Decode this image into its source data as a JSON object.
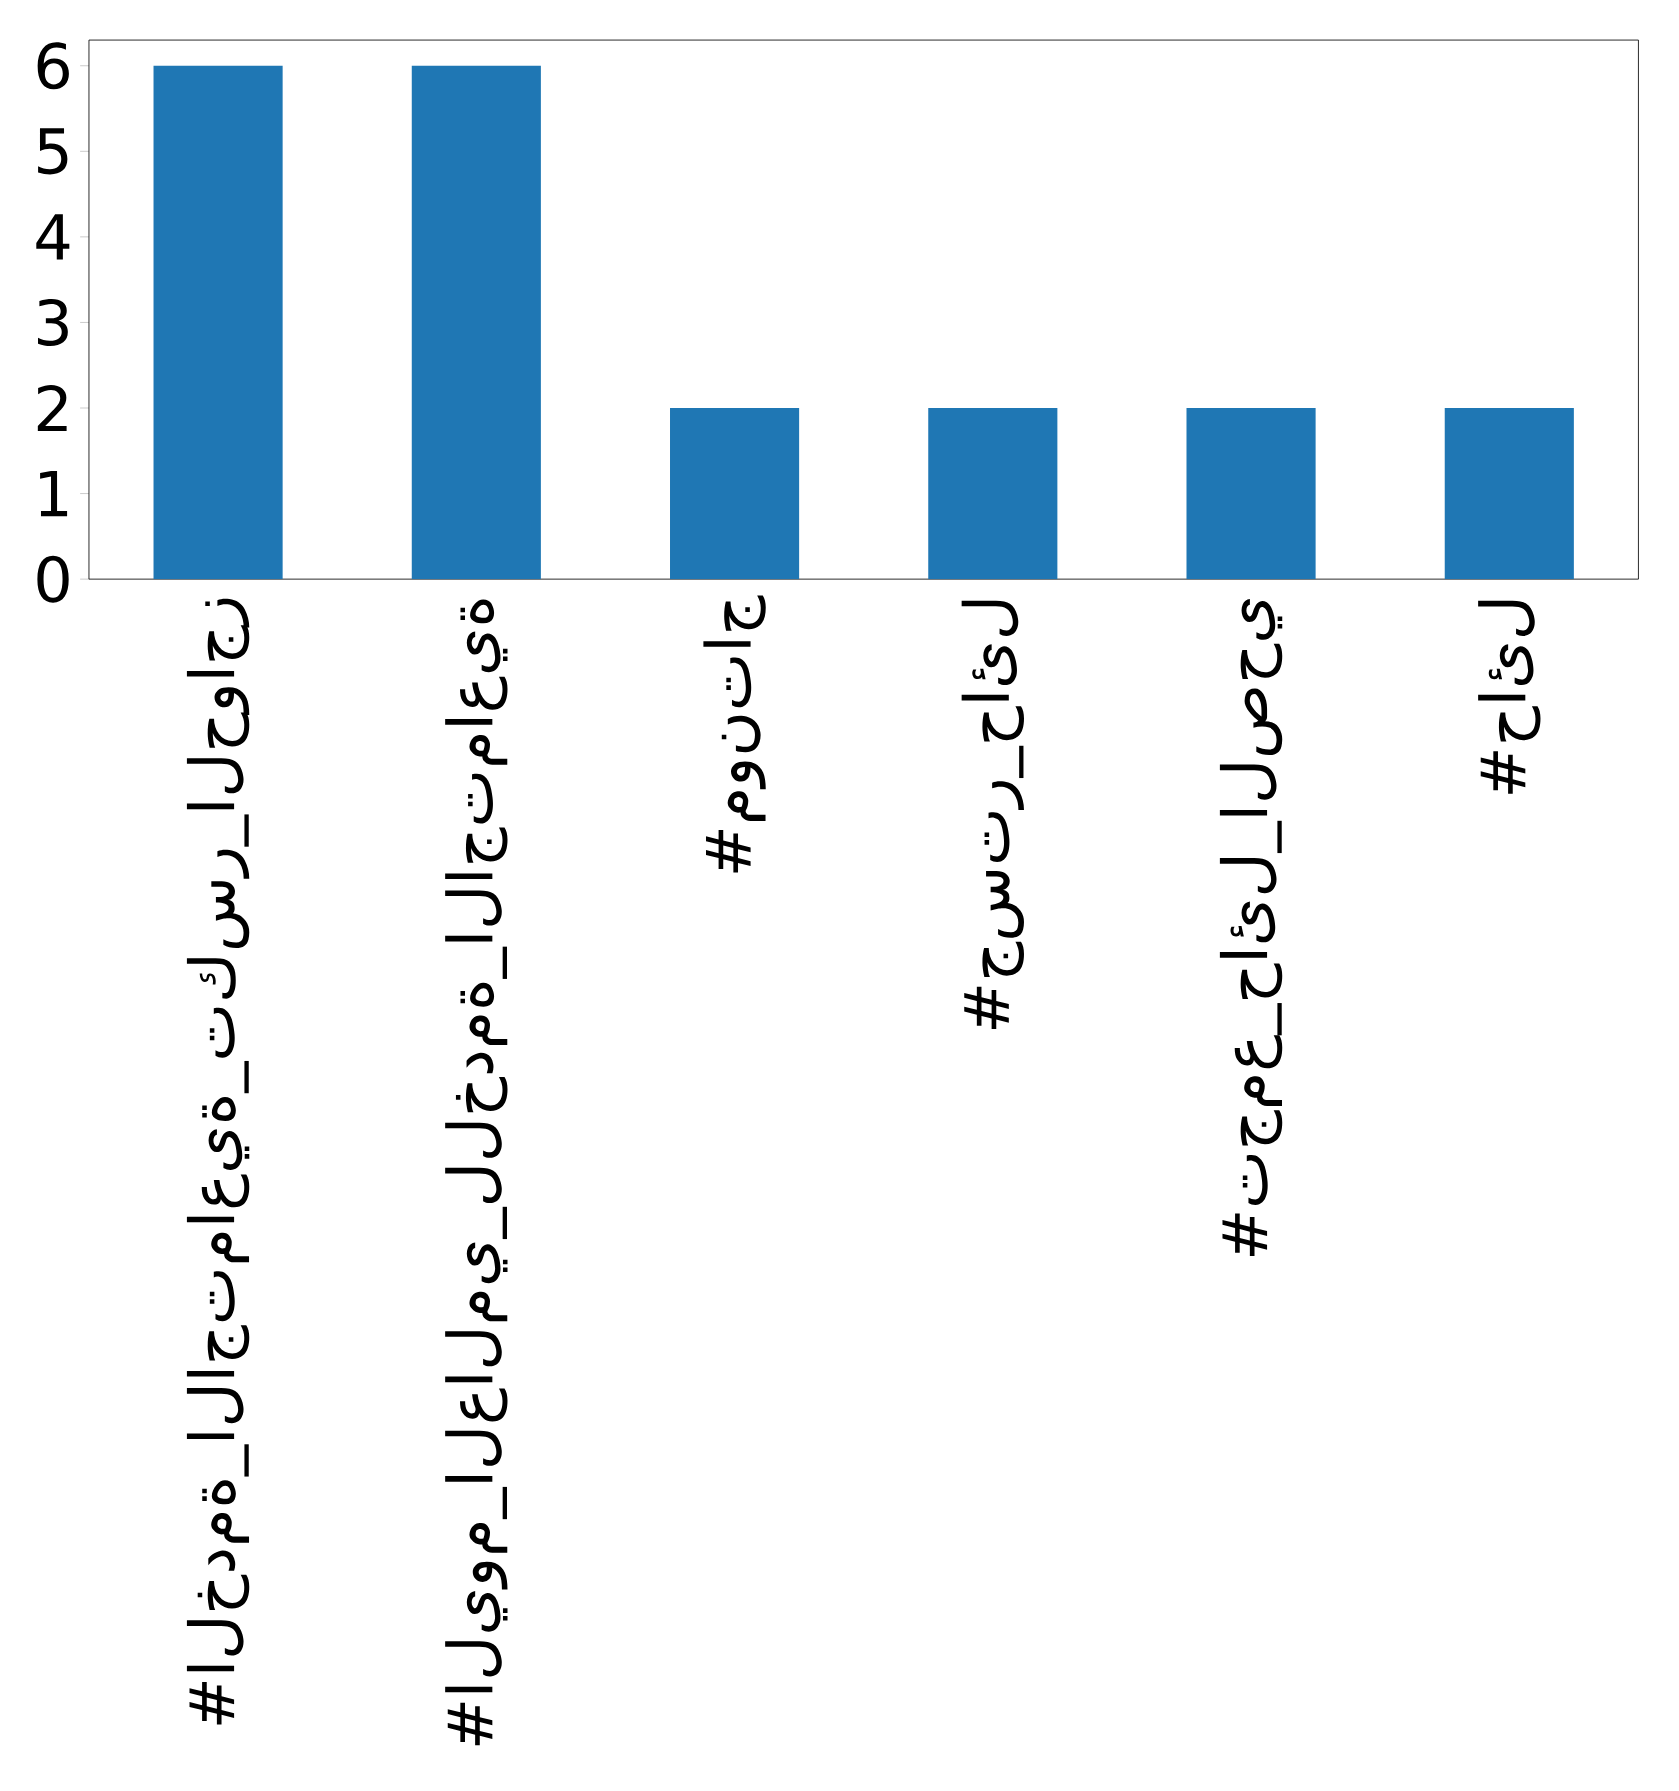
{
  "chart_data": {
    "type": "bar",
    "categories": [
      "#الخدمة_الاجتماعية_تكسر_الحواجز",
      "#اليوم_العالمي_للخدمة_الاجتماعية",
      "#مونتاج",
      "#جستر_حائل",
      "#تجمع_حائل_الصحي",
      "#حائل"
    ],
    "values": [
      6,
      6,
      2,
      2,
      2,
      2
    ],
    "color": "#1f77b4",
    "ylim": [
      0,
      6.3
    ],
    "yticks": [
      0,
      1,
      2,
      3,
      4,
      5,
      6
    ],
    "grid": false
  }
}
